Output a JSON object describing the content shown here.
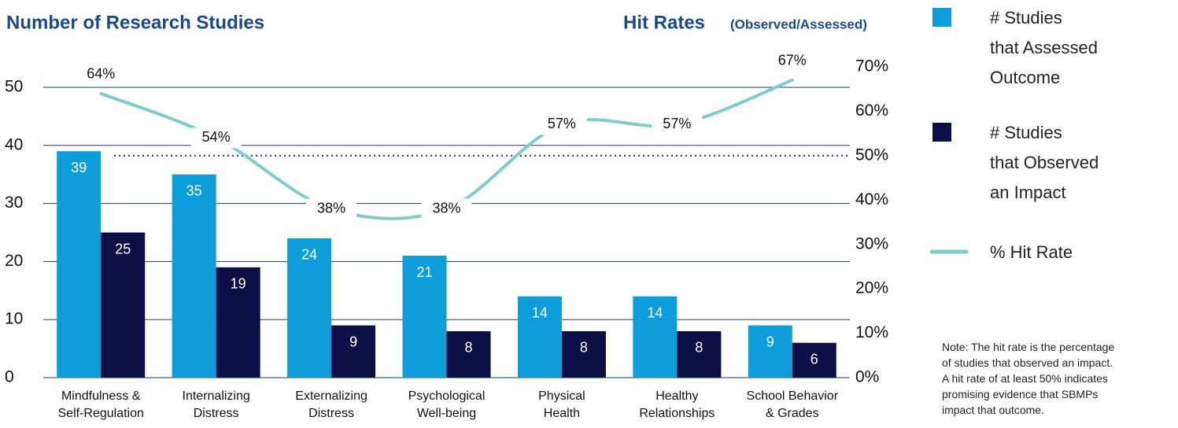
{
  "chart_data": {
    "type": "bar",
    "title": "Number of Research Studies",
    "y2_title": "Hit Rates",
    "y2_subtitle": "(Observed/Assessed)",
    "categories": [
      [
        "Mindfulness &",
        "Self-Regulation"
      ],
      [
        "Internalizing",
        "Distress"
      ],
      [
        "Externalizing",
        "Distress"
      ],
      [
        "Psychological",
        "Well-being"
      ],
      [
        "Physical",
        "Health"
      ],
      [
        "Healthy",
        "Relationships"
      ],
      [
        "School Behavior",
        "& Grades"
      ]
    ],
    "series": [
      {
        "name": [
          "# Studies",
          "that Assessed",
          "Outcome"
        ],
        "color": "#0e9ddb",
        "values": [
          39,
          35,
          24,
          21,
          14,
          14,
          9
        ]
      },
      {
        "name": [
          "# Studies",
          "that Observed",
          "an Impact"
        ],
        "color": "#0b0f45",
        "values": [
          25,
          19,
          9,
          8,
          8,
          8,
          6
        ]
      },
      {
        "name": [
          "% Hit Rate"
        ],
        "type": "line",
        "axis": "y2",
        "color": "#7ecdc8",
        "values": [
          64,
          54,
          38,
          38,
          57,
          57,
          67
        ],
        "value_labels": [
          "64%",
          "54%",
          "38%",
          "38%",
          "57%",
          "57%",
          "67%"
        ]
      }
    ],
    "ylim": [
      0,
      50
    ],
    "yticks": [
      0,
      10,
      20,
      30,
      40,
      50
    ],
    "y2lim": [
      0,
      70
    ],
    "y2ticks": [
      {
        "value": 0,
        "label": "0%"
      },
      {
        "value": 10,
        "label": "10%"
      },
      {
        "value": 20,
        "label": "20%"
      },
      {
        "value": 30,
        "label": "30%"
      },
      {
        "value": 40,
        "label": "40%"
      },
      {
        "value": 50,
        "label": "50%"
      },
      {
        "value": 60,
        "label": "60%"
      },
      {
        "value": 70,
        "label": "70%"
      }
    ],
    "y2_reference_line": 50,
    "grid": true,
    "legend": "right",
    "note": [
      "Note: The hit rate is the percentage",
      "of studies that observed an impact.",
      "A hit rate of at least 50% indicates",
      "promising evidence that SBMPs",
      "impact that outcome."
    ]
  }
}
